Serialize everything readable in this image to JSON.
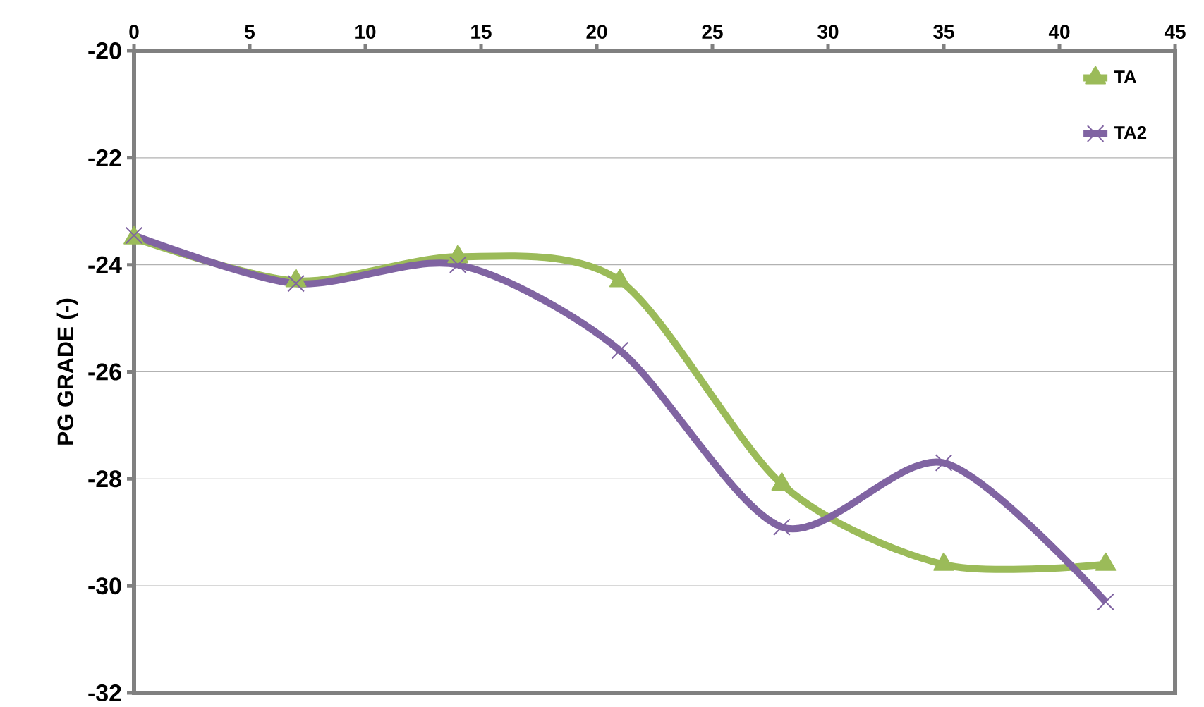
{
  "chart_data": {
    "type": "line",
    "ylabel": "PG GRADE (-)",
    "x": [
      0,
      7,
      14,
      21,
      28,
      35,
      42
    ],
    "xlim": [
      0,
      45
    ],
    "xticks": [
      0,
      5,
      10,
      15,
      20,
      25,
      30,
      35,
      40,
      45
    ],
    "ylim": [
      -32,
      -20
    ],
    "yticks": [
      -32,
      -30,
      -28,
      -26,
      -24,
      -22,
      -20
    ],
    "grid": "y",
    "legend": "right",
    "series": [
      {
        "name": "TA",
        "color": "#9bbb59",
        "marker": "triangle",
        "values": [
          -23.5,
          -24.3,
          -23.85,
          -24.3,
          -28.1,
          -29.6,
          -29.6
        ]
      },
      {
        "name": "TA2",
        "color": "#8064a2",
        "marker": "cross",
        "values": [
          -23.45,
          -24.35,
          -24.0,
          -25.6,
          -28.9,
          -27.7,
          -30.3
        ]
      }
    ]
  }
}
